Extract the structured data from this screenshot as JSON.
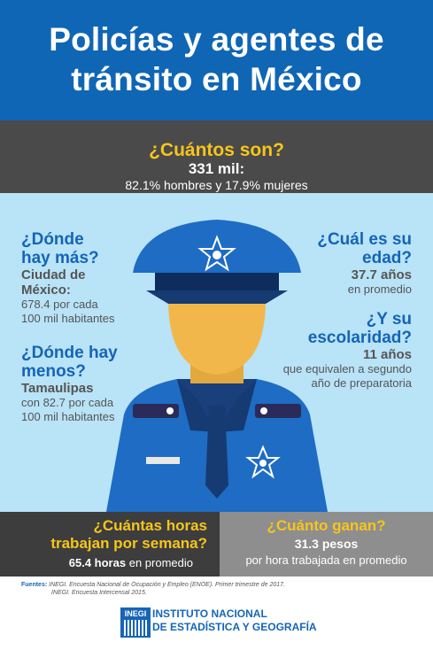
{
  "title": {
    "line1": "Policías y agentes de",
    "line2": "tránsito en México"
  },
  "count": {
    "question": "¿Cuántos son?",
    "value": "331 mil:",
    "detail": "82.1% hombres y 17.9% mujeres"
  },
  "most": {
    "question_l1": "¿Dónde",
    "question_l2": "hay más?",
    "place_l1": "Ciudad de",
    "place_l2": "México:",
    "detail_l1": "678.4 por cada",
    "detail_l2": "100 mil habitantes"
  },
  "least": {
    "question_l1": "¿Dónde hay",
    "question_l2": "menos?",
    "place": "Tamaulipas",
    "detail_l1": "con 82.7 por cada",
    "detail_l2": "100 mil habitantes"
  },
  "age": {
    "question_l1": "¿Cuál es su",
    "question_l2": "edad?",
    "value": "37.7 años",
    "detail": "en promedio"
  },
  "school": {
    "question_l1": "¿Y su",
    "question_l2": "escolaridad?",
    "value": "11 años",
    "detail_l1": "que equivalen a segundo",
    "detail_l2": "año de preparatoria"
  },
  "hours": {
    "question_l1": "¿Cuántas horas",
    "question_l2": "trabajan por semana?",
    "value": "65.4 horas",
    "detail": "en promedio"
  },
  "pay": {
    "question": "¿Cuánto ganan?",
    "value": "31.3 pesos",
    "detail": "por hora trabajada en promedio"
  },
  "sources": {
    "label": "Fuentes:",
    "line1": "INEGI. Encuesta Nacional de Ocupación y Empleo (ENOE). Primer trimestre de 2017.",
    "line2": "INEGI. Encuesta Intercensal 2015."
  },
  "logo": {
    "abbr": "INEGI",
    "line1": "INSTITUTO NACIONAL",
    "line2": "DE ESTADÍSTICA Y GEOGRAFÍA"
  },
  "colors": {
    "blue": "#0f66b5",
    "yellow": "#f6c51c",
    "sky": "#b9e3f7",
    "dark": "#4a4a4a"
  }
}
